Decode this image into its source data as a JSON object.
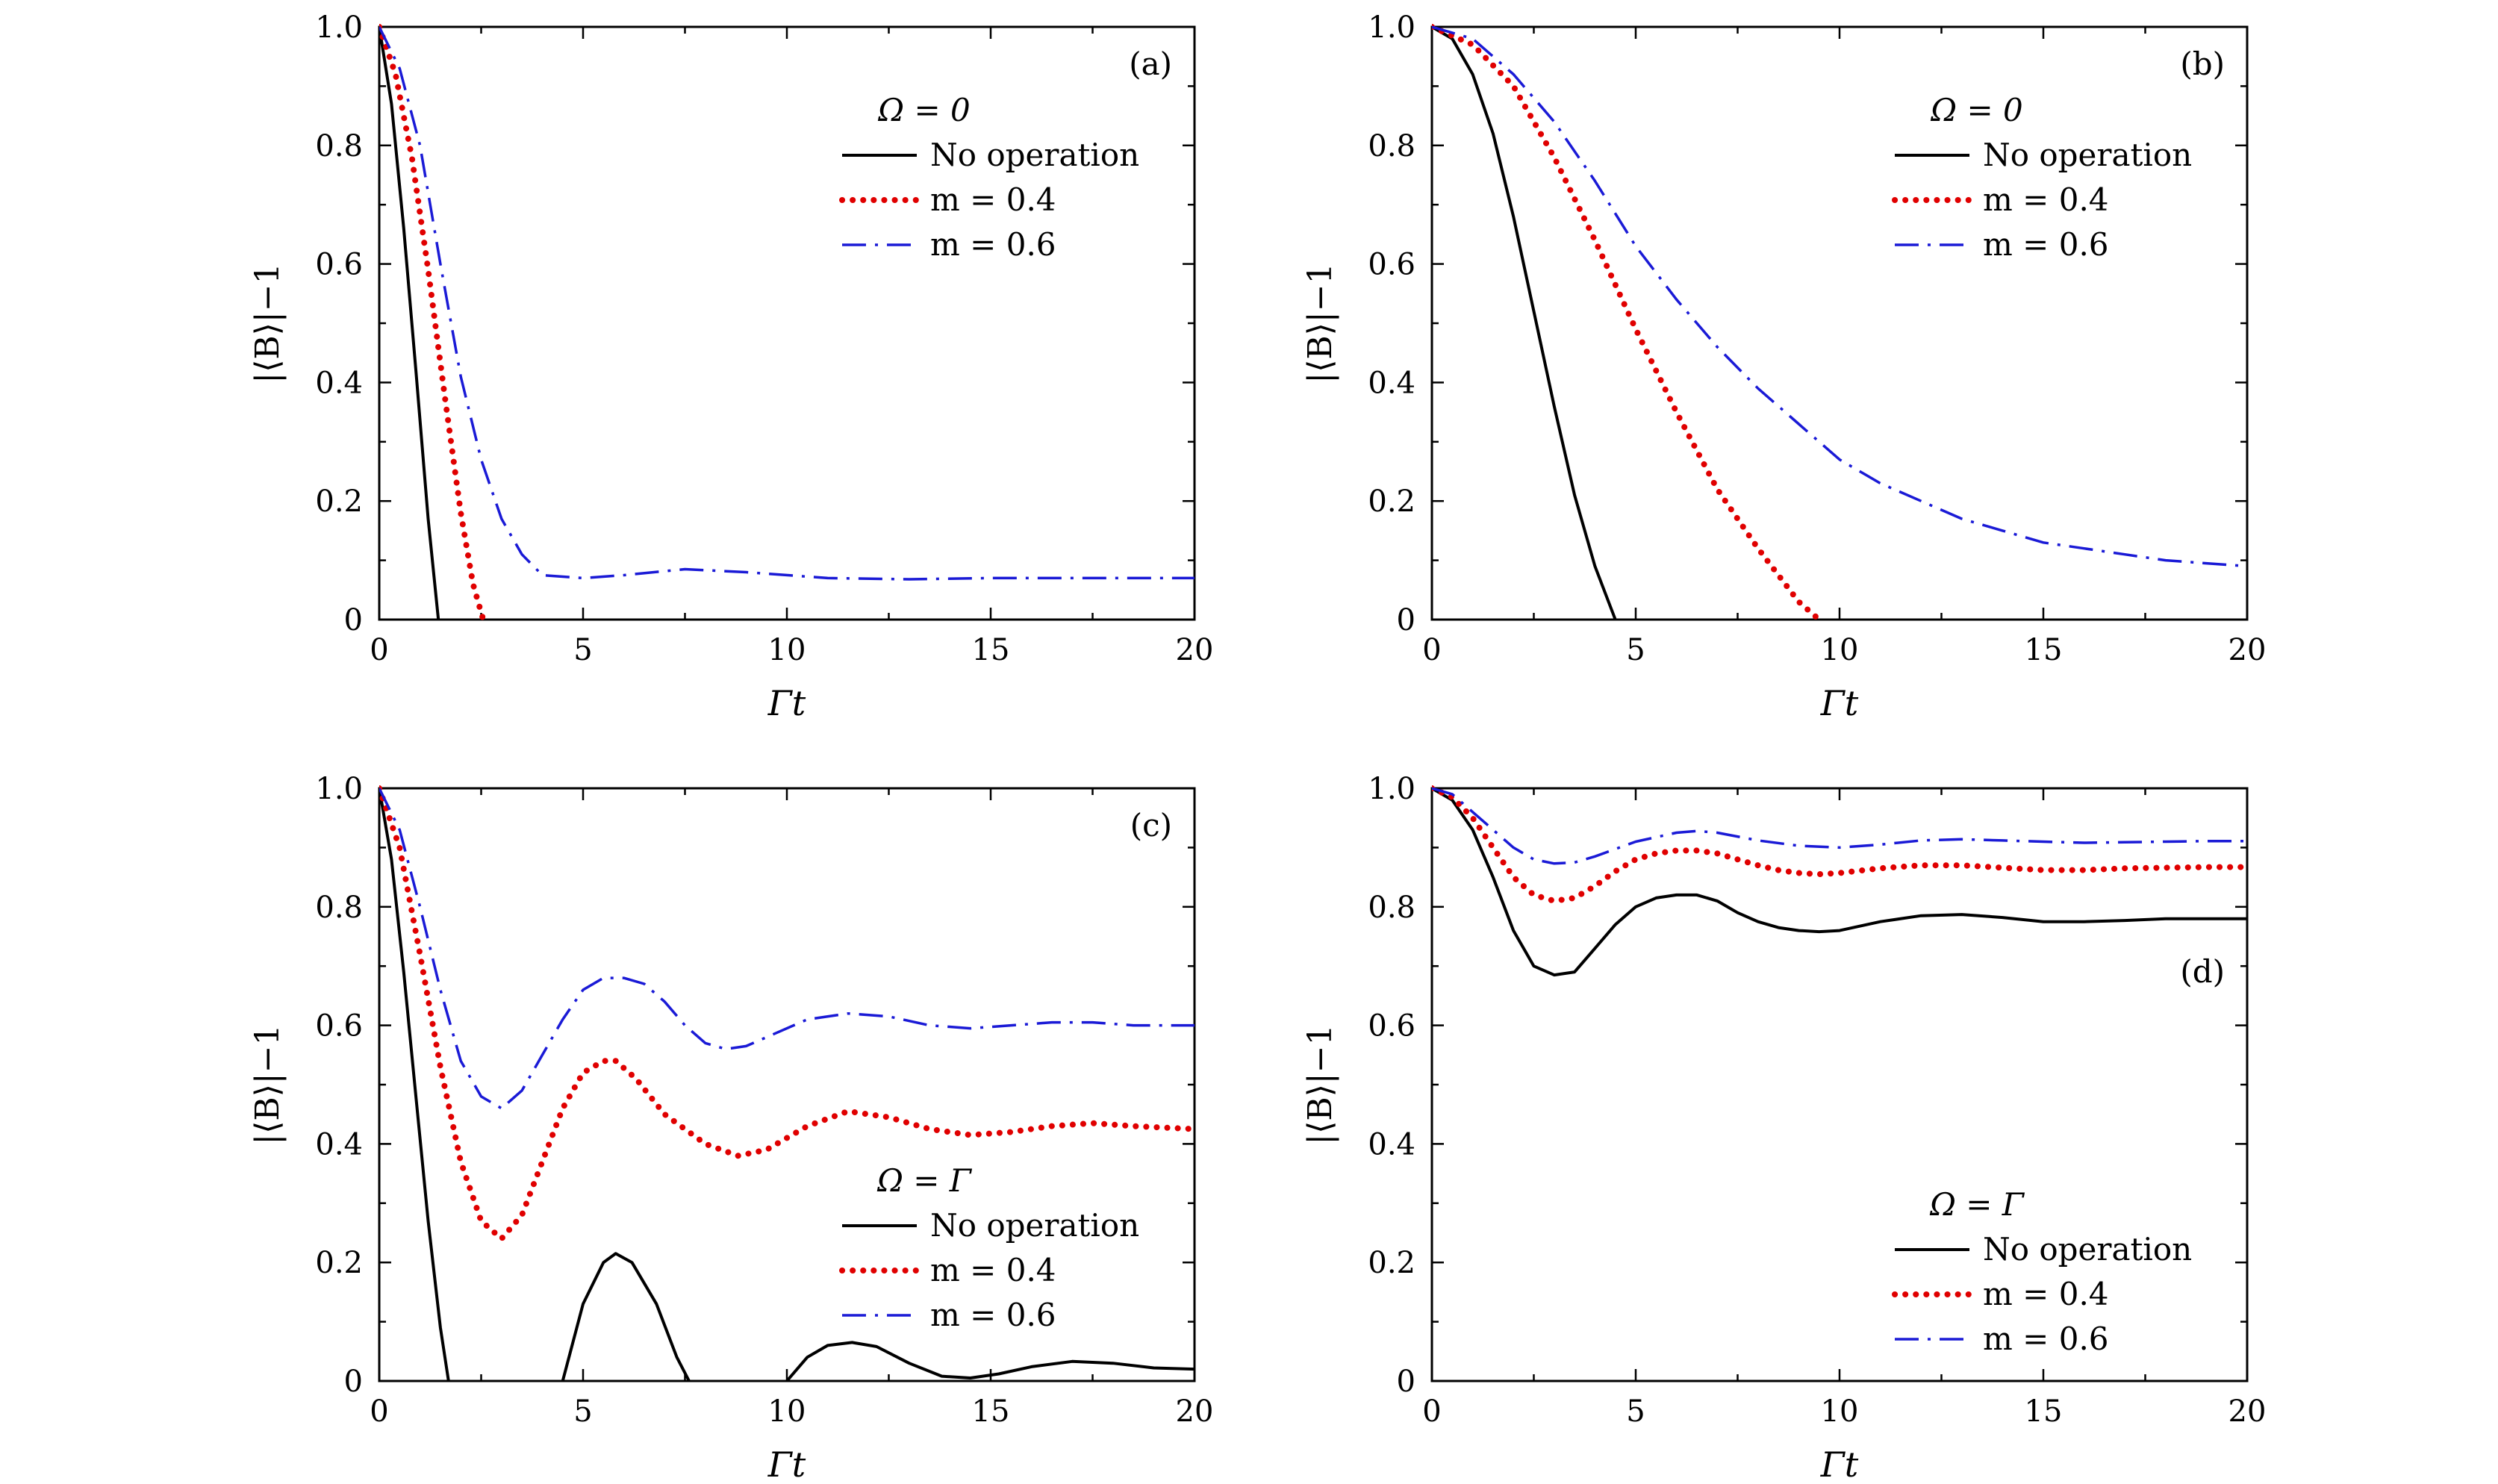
{
  "figure": {
    "xlabel": "Γt",
    "ylabel": "|⟨B⟩|−1",
    "xlim": [
      0,
      20
    ],
    "ylim": [
      0,
      1.0
    ],
    "xticks": [
      "0",
      "5",
      "10",
      "15",
      "20"
    ],
    "yticks": [
      "0",
      "0.2",
      "0.4",
      "0.6",
      "0.8",
      "1.0"
    ]
  },
  "series_styles": {
    "No operation": {
      "color": "#000000",
      "style": "solid"
    },
    "m = 0.4": {
      "color": "#e00000",
      "style": "dotted"
    },
    "m = 0.6": {
      "color": "#1a1ad6",
      "style": "dashdot"
    }
  },
  "chart_data": [
    {
      "panel": "(a)",
      "type": "line",
      "legend_title": "Ω = 0",
      "legend_position": "upper-right",
      "xlabel": "Γt",
      "ylabel": "|⟨B⟩|−1",
      "xlim": [
        0,
        20
      ],
      "ylim": [
        0,
        1.0
      ],
      "series": [
        {
          "name": "No operation",
          "x": [
            0,
            0.3,
            0.6,
            0.9,
            1.2,
            1.45
          ],
          "y": [
            1.0,
            0.87,
            0.66,
            0.42,
            0.17,
            0.0
          ]
        },
        {
          "name": "m = 0.4",
          "x": [
            0,
            0.4,
            0.8,
            1.2,
            1.6,
            2.0,
            2.3,
            2.55
          ],
          "y": [
            1.0,
            0.92,
            0.78,
            0.59,
            0.38,
            0.18,
            0.06,
            0.0
          ]
        },
        {
          "name": "m = 0.6",
          "x": [
            0,
            0.5,
            1.0,
            1.5,
            2.0,
            2.5,
            3.0,
            3.5,
            4.0,
            5.0,
            6.0,
            7.5,
            9.0,
            11.0,
            13.0,
            15.0,
            17.0,
            20.0
          ],
          "y": [
            1.0,
            0.93,
            0.8,
            0.6,
            0.41,
            0.27,
            0.17,
            0.11,
            0.075,
            0.07,
            0.075,
            0.085,
            0.08,
            0.07,
            0.068,
            0.07,
            0.07,
            0.07
          ]
        }
      ]
    },
    {
      "panel": "(b)",
      "type": "line",
      "legend_title": "Ω = 0",
      "legend_position": "upper-right",
      "xlabel": "Γt",
      "ylabel": "|⟨B⟩|−1",
      "xlim": [
        0,
        20
      ],
      "ylim": [
        0,
        1.0
      ],
      "series": [
        {
          "name": "No operation",
          "x": [
            0,
            0.5,
            1.0,
            1.5,
            2.0,
            2.5,
            3.0,
            3.5,
            4.0,
            4.5
          ],
          "y": [
            1.0,
            0.98,
            0.92,
            0.82,
            0.68,
            0.52,
            0.36,
            0.21,
            0.09,
            0.0
          ]
        },
        {
          "name": "m = 0.4",
          "x": [
            0,
            1,
            2,
            3,
            4,
            5,
            6,
            7,
            8,
            9,
            9.5
          ],
          "y": [
            1.0,
            0.97,
            0.9,
            0.78,
            0.64,
            0.49,
            0.35,
            0.22,
            0.12,
            0.03,
            0.0
          ]
        },
        {
          "name": "m = 0.6",
          "x": [
            0,
            1,
            2,
            3,
            4,
            5,
            6,
            7,
            8,
            9,
            10,
            11,
            12,
            13,
            14,
            15,
            16,
            17,
            18,
            19,
            20
          ],
          "y": [
            1.0,
            0.98,
            0.92,
            0.84,
            0.74,
            0.63,
            0.54,
            0.46,
            0.39,
            0.33,
            0.27,
            0.23,
            0.2,
            0.17,
            0.15,
            0.13,
            0.12,
            0.11,
            0.1,
            0.095,
            0.09
          ]
        }
      ]
    },
    {
      "panel": "(c)",
      "type": "line",
      "legend_title": "Ω = Γ",
      "legend_position": "lower-right",
      "xlabel": "Γt",
      "ylabel": "|⟨B⟩|−1",
      "xlim": [
        0,
        20
      ],
      "ylim": [
        0,
        1.0
      ],
      "series": [
        {
          "name": "No operation",
          "x": [
            0,
            0.3,
            0.6,
            0.9,
            1.2,
            1.5,
            1.7,
            null,
            4.5,
            5.0,
            5.5,
            5.8,
            6.2,
            6.8,
            7.3,
            7.6,
            null,
            10.0,
            10.5,
            11.0,
            11.6,
            12.2,
            13.0,
            13.8,
            14.5,
            15.2,
            16.0,
            17.0,
            18.0,
            19.0,
            20.0
          ],
          "y": [
            1.0,
            0.88,
            0.69,
            0.48,
            0.27,
            0.09,
            0.0,
            null,
            0.0,
            0.13,
            0.2,
            0.215,
            0.2,
            0.13,
            0.04,
            0.0,
            null,
            0.0,
            0.04,
            0.06,
            0.065,
            0.058,
            0.03,
            0.008,
            0.005,
            0.012,
            0.024,
            0.033,
            0.03,
            0.022,
            0.02
          ]
        },
        {
          "name": "m = 0.4",
          "x": [
            0,
            0.5,
            1.0,
            1.5,
            2.0,
            2.5,
            3.0,
            3.5,
            4.0,
            4.5,
            5.0,
            5.5,
            5.8,
            6.3,
            7.0,
            8.0,
            8.8,
            9.5,
            10.5,
            11.5,
            12.5,
            13.5,
            14.5,
            15.5,
            16.5,
            17.5,
            18.5,
            20.0
          ],
          "y": [
            1.0,
            0.9,
            0.72,
            0.53,
            0.37,
            0.27,
            0.24,
            0.28,
            0.37,
            0.46,
            0.52,
            0.54,
            0.54,
            0.51,
            0.45,
            0.4,
            0.38,
            0.39,
            0.43,
            0.455,
            0.445,
            0.425,
            0.415,
            0.42,
            0.43,
            0.435,
            0.43,
            0.425
          ]
        },
        {
          "name": "m = 0.6",
          "x": [
            0,
            0.5,
            1.0,
            1.5,
            2.0,
            2.5,
            3.0,
            3.5,
            4.0,
            4.5,
            5.0,
            5.5,
            6.0,
            6.5,
            7.0,
            7.5,
            8.0,
            8.5,
            9.0,
            9.5,
            10.5,
            11.5,
            12.5,
            13.5,
            14.5,
            15.5,
            16.5,
            17.5,
            18.5,
            20.0
          ],
          "y": [
            1.0,
            0.93,
            0.8,
            0.66,
            0.54,
            0.48,
            0.46,
            0.49,
            0.55,
            0.61,
            0.66,
            0.68,
            0.68,
            0.67,
            0.64,
            0.6,
            0.57,
            0.56,
            0.565,
            0.58,
            0.61,
            0.62,
            0.615,
            0.6,
            0.595,
            0.6,
            0.605,
            0.605,
            0.6,
            0.6
          ]
        }
      ]
    },
    {
      "panel": "(d)",
      "type": "line",
      "legend_title": "Ω = Γ",
      "legend_position": "lower-right",
      "xlabel": "Γt",
      "ylabel": "|⟨B⟩|−1",
      "xlim": [
        0,
        20
      ],
      "ylim": [
        0,
        1.0
      ],
      "series": [
        {
          "name": "No operation",
          "x": [
            0,
            0.5,
            1.0,
            1.5,
            2.0,
            2.5,
            3.0,
            3.5,
            4.0,
            4.5,
            5.0,
            5.5,
            6.0,
            6.5,
            7.0,
            7.5,
            8.0,
            8.5,
            9.0,
            9.5,
            10.0,
            11.0,
            12.0,
            13.0,
            14.0,
            15.0,
            16.0,
            17.0,
            18.0,
            19.0,
            20.0
          ],
          "y": [
            1.0,
            0.98,
            0.93,
            0.85,
            0.76,
            0.7,
            0.685,
            0.69,
            0.73,
            0.77,
            0.8,
            0.815,
            0.82,
            0.82,
            0.81,
            0.79,
            0.775,
            0.765,
            0.76,
            0.758,
            0.76,
            0.775,
            0.785,
            0.787,
            0.782,
            0.775,
            0.775,
            0.777,
            0.78,
            0.78,
            0.78
          ]
        },
        {
          "name": "m = 0.4",
          "x": [
            0,
            0.5,
            1.0,
            1.5,
            2.0,
            2.5,
            3.0,
            3.5,
            4.0,
            4.5,
            5.0,
            5.5,
            6.0,
            6.5,
            7.0,
            7.5,
            8.0,
            8.5,
            9.0,
            9.5,
            10.0,
            11.0,
            12.0,
            13.0,
            14.0,
            15.0,
            16.0,
            17.0,
            18.0,
            19.0,
            20.0
          ],
          "y": [
            1.0,
            0.985,
            0.95,
            0.9,
            0.85,
            0.82,
            0.81,
            0.815,
            0.835,
            0.86,
            0.88,
            0.89,
            0.895,
            0.895,
            0.89,
            0.88,
            0.87,
            0.862,
            0.857,
            0.855,
            0.857,
            0.865,
            0.87,
            0.87,
            0.866,
            0.862,
            0.862,
            0.865,
            0.866,
            0.867,
            0.867
          ]
        },
        {
          "name": "m = 0.6",
          "x": [
            0,
            0.5,
            1.0,
            1.5,
            2.0,
            2.5,
            3.0,
            3.5,
            4.0,
            5.0,
            6.0,
            6.5,
            7.0,
            8.0,
            9.0,
            10.0,
            11.0,
            12.0,
            13.0,
            14.0,
            15.0,
            16.0,
            17.0,
            18.0,
            19.0,
            20.0
          ],
          "y": [
            1.0,
            0.99,
            0.96,
            0.93,
            0.9,
            0.88,
            0.873,
            0.875,
            0.885,
            0.91,
            0.925,
            0.928,
            0.925,
            0.912,
            0.903,
            0.9,
            0.905,
            0.912,
            0.914,
            0.912,
            0.91,
            0.908,
            0.909,
            0.91,
            0.911,
            0.911
          ]
        }
      ]
    }
  ]
}
